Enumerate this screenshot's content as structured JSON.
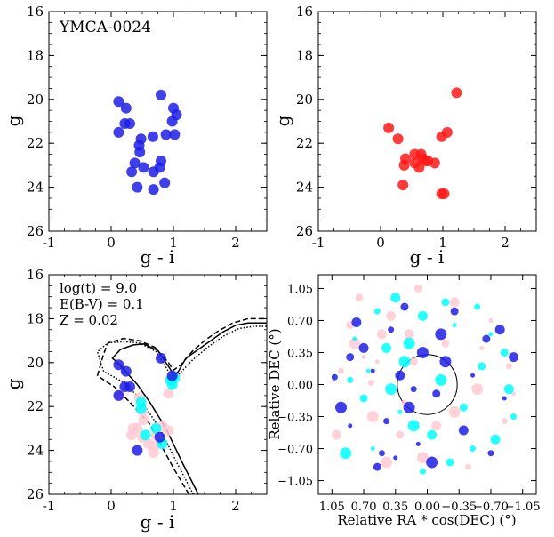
{
  "chart_data": [
    {
      "type": "scatter",
      "panel": "top-left",
      "title": "YMCA-0024",
      "xlabel": "g - i",
      "ylabel": "g",
      "xlim": [
        -1,
        2.5
      ],
      "ylim": [
        26,
        16
      ],
      "xticks": [
        "-1",
        "0",
        "1",
        "2"
      ],
      "yticks": [
        "16",
        "18",
        "20",
        "22",
        "24",
        "26"
      ],
      "series": [
        {
          "color": "#1f1fe6",
          "points": [
            [
              0.12,
              20.1
            ],
            [
              0.24,
              20.4
            ],
            [
              0.22,
              21.1
            ],
            [
              0.3,
              21.1
            ],
            [
              0.12,
              21.5
            ],
            [
              0.48,
              21.8
            ],
            [
              0.8,
              19.8
            ],
            [
              1.0,
              20.4
            ],
            [
              1.05,
              20.7
            ],
            [
              0.98,
              21.0
            ],
            [
              0.88,
              21.6
            ],
            [
              1.02,
              21.6
            ],
            [
              0.67,
              21.7
            ],
            [
              0.45,
              22.1
            ],
            [
              0.46,
              22.4
            ],
            [
              0.8,
              22.8
            ],
            [
              0.38,
              22.9
            ],
            [
              0.78,
              23.1
            ],
            [
              0.52,
              23.1
            ],
            [
              0.68,
              23.3
            ],
            [
              0.33,
              23.3
            ],
            [
              0.86,
              23.8
            ],
            [
              0.42,
              24.0
            ],
            [
              0.68,
              24.1
            ]
          ]
        }
      ]
    },
    {
      "type": "scatter",
      "panel": "top-right",
      "xlabel": "g - i",
      "ylabel": "g",
      "xlim": [
        -1,
        2.5
      ],
      "ylim": [
        26,
        16
      ],
      "xticks": [
        "-1",
        "0",
        "1",
        "2"
      ],
      "yticks": [
        "16",
        "18",
        "20",
        "22",
        "24",
        "26"
      ],
      "series": [
        {
          "color": "#ff1a1a",
          "points": [
            [
              1.22,
              19.7
            ],
            [
              0.13,
              21.3
            ],
            [
              0.28,
              21.8
            ],
            [
              1.07,
              21.5
            ],
            [
              0.98,
              21.7
            ],
            [
              0.55,
              22.5
            ],
            [
              0.65,
              22.5
            ],
            [
              0.4,
              22.7
            ],
            [
              0.68,
              22.7
            ],
            [
              0.72,
              22.8
            ],
            [
              0.76,
              22.8
            ],
            [
              0.87,
              22.9
            ],
            [
              0.55,
              22.9
            ],
            [
              0.38,
              23.0
            ],
            [
              0.62,
              23.1
            ],
            [
              0.36,
              23.9
            ],
            [
              0.98,
              24.3
            ],
            [
              1.02,
              24.3
            ]
          ]
        }
      ]
    },
    {
      "type": "scatter",
      "panel": "bottom-left",
      "annotations": [
        "log(t) = 9.0",
        "E(B-V) = 0.1",
        "Z = 0.02"
      ],
      "xlabel": "g - i",
      "ylabel": "g",
      "xlim": [
        -1,
        2.5
      ],
      "ylim": [
        26,
        16
      ],
      "xticks": [
        "-1",
        "0",
        "1",
        "2"
      ],
      "yticks": [
        "16",
        "18",
        "20",
        "22",
        "24",
        "26"
      ],
      "series": [
        {
          "color": "#ffcad4",
          "points": [
            [
              0.13,
              21.5
            ],
            [
              0.45,
              21.6
            ],
            [
              0.92,
              21.4
            ],
            [
              0.5,
              22.2
            ],
            [
              0.52,
              22.6
            ],
            [
              0.35,
              23.0
            ],
            [
              0.42,
              23.0
            ],
            [
              0.82,
              22.9
            ],
            [
              0.92,
              23.1
            ],
            [
              0.33,
              23.3
            ],
            [
              0.5,
              23.4
            ],
            [
              0.72,
              23.3
            ],
            [
              0.6,
              23.7
            ],
            [
              0.68,
              24.1
            ],
            [
              0.7,
              23.8
            ]
          ]
        },
        {
          "color": "#00ffff",
          "points": [
            [
              0.48,
              21.8
            ],
            [
              0.48,
              22.1
            ],
            [
              0.98,
              21.0
            ],
            [
              1.02,
              20.7
            ],
            [
              0.72,
              23.0
            ],
            [
              0.55,
              23.3
            ],
            [
              0.82,
              23.7
            ],
            [
              0.95,
              20.8
            ]
          ]
        },
        {
          "color": "#1f1fe6",
          "points": [
            [
              0.12,
              20.1
            ],
            [
              0.24,
              20.4
            ],
            [
              0.22,
              21.1
            ],
            [
              0.3,
              21.1
            ],
            [
              0.12,
              21.5
            ],
            [
              0.8,
              19.8
            ],
            [
              0.98,
              20.6
            ],
            [
              0.78,
              23.4
            ],
            [
              0.42,
              24.0
            ]
          ]
        }
      ],
      "isochrones": [
        {
          "style": "solid",
          "points": [
            [
              1.4,
              26.0
            ],
            [
              1.15,
              24.6
            ],
            [
              0.88,
              23.0
            ],
            [
              0.62,
              21.8
            ],
            [
              0.42,
              21.0
            ],
            [
              0.2,
              20.3
            ],
            [
              0.1,
              20.0
            ],
            [
              0.02,
              19.8
            ],
            [
              0.15,
              19.4
            ],
            [
              0.35,
              19.2
            ],
            [
              0.52,
              19.15
            ],
            [
              0.75,
              19.45
            ],
            [
              0.95,
              20.3
            ],
            [
              1.0,
              20.6
            ],
            [
              1.08,
              20.4
            ],
            [
              1.2,
              19.8
            ],
            [
              1.4,
              19.4
            ],
            [
              1.6,
              19.0
            ],
            [
              1.8,
              18.6
            ],
            [
              2.0,
              18.3
            ],
            [
              2.2,
              18.2
            ],
            [
              2.5,
              18.2
            ]
          ]
        },
        {
          "style": "dashed",
          "points": [
            [
              1.25,
              26.0
            ],
            [
              1.0,
              24.8
            ],
            [
              0.62,
              22.8
            ],
            [
              0.3,
              21.8
            ],
            [
              0.05,
              21.1
            ],
            [
              -0.22,
              20.6
            ],
            [
              -0.12,
              19.6
            ],
            [
              -0.05,
              19.1
            ],
            [
              0.2,
              18.9
            ],
            [
              0.45,
              19.0
            ],
            [
              0.7,
              19.3
            ],
            [
              0.92,
              20.0
            ],
            [
              1.0,
              20.35
            ],
            [
              1.12,
              20.1
            ],
            [
              1.3,
              19.5
            ],
            [
              1.5,
              19.0
            ],
            [
              1.7,
              18.6
            ],
            [
              1.95,
              18.2
            ],
            [
              2.2,
              18.0
            ],
            [
              2.5,
              18.0
            ]
          ]
        },
        {
          "style": "dotted",
          "points": [
            [
              1.32,
              26.0
            ],
            [
              1.08,
              24.7
            ],
            [
              0.78,
              23.0
            ],
            [
              0.45,
              21.6
            ],
            [
              0.2,
              20.9
            ],
            [
              -0.12,
              20.4
            ],
            [
              -0.22,
              19.5
            ],
            [
              -0.05,
              19.1
            ],
            [
              0.2,
              19.05
            ],
            [
              0.45,
              19.1
            ],
            [
              0.72,
              19.5
            ],
            [
              0.9,
              20.3
            ],
            [
              0.98,
              20.75
            ],
            [
              1.1,
              20.5
            ],
            [
              1.3,
              19.9
            ],
            [
              1.55,
              19.3
            ],
            [
              1.8,
              18.8
            ],
            [
              2.05,
              18.45
            ],
            [
              2.3,
              18.35
            ],
            [
              2.5,
              18.35
            ]
          ]
        }
      ]
    },
    {
      "type": "scatter",
      "panel": "bottom-right",
      "xlabel": "Relative RA * cos(DEC) (°)",
      "ylabel": "Relative DEC (°)",
      "xlim": [
        1.2,
        -1.2
      ],
      "ylim": [
        -1.2,
        1.2
      ],
      "xticks": [
        "1.05",
        "0.70",
        "0.35",
        "0.00",
        "−0.35",
        "−0.70",
        "−1.05"
      ],
      "yticks": [
        "1.05",
        "0.70",
        "0.35",
        "0.00",
        "−0.35",
        "−0.70",
        "−1.05"
      ],
      "circle_radius": 0.33,
      "series": [
        {
          "color": "#ffcad4",
          "points": [
            [
              0.55,
              0.25
            ],
            [
              0.1,
              1.05
            ],
            [
              0.8,
              0.45
            ],
            [
              0.62,
              0.02
            ],
            [
              -0.3,
              0.9
            ],
            [
              0.95,
              -0.25
            ],
            [
              0.3,
              -0.55
            ],
            [
              -0.55,
              -0.05
            ],
            [
              -0.9,
              0.2
            ],
            [
              0.2,
              0.55
            ],
            [
              -0.6,
              0.4
            ],
            [
              0.85,
              0.65
            ],
            [
              0.45,
              -0.85
            ],
            [
              -0.45,
              -0.9
            ],
            [
              1.0,
              -0.55
            ],
            [
              0.7,
              0.3
            ],
            [
              -0.2,
              0.45
            ],
            [
              0.05,
              -0.8
            ],
            [
              -0.85,
              -0.4
            ],
            [
              0.4,
              0.75
            ],
            [
              -0.7,
              0.7
            ],
            [
              0.15,
              0.25
            ],
            [
              0.6,
              -0.35
            ],
            [
              0.25,
              -0.2
            ],
            [
              -0.1,
              -0.45
            ],
            [
              -0.95,
              -0.1
            ],
            [
              0.75,
              0.95
            ],
            [
              -0.3,
              -0.3
            ],
            [
              0.95,
              0.15
            ],
            [
              0.5,
              0.55
            ]
          ]
        },
        {
          "color": "#00ffff",
          "points": [
            [
              0.35,
              0.95
            ],
            [
              -0.7,
              0.55
            ],
            [
              -0.2,
              0.9
            ],
            [
              0.2,
              0.45
            ],
            [
              0.85,
              0.05
            ],
            [
              -0.05,
              -0.55
            ],
            [
              0.6,
              -0.7
            ],
            [
              -0.85,
              0.35
            ],
            [
              0.9,
              -0.75
            ],
            [
              -0.5,
              -0.7
            ],
            [
              0.45,
              0.4
            ],
            [
              -0.3,
              0.65
            ],
            [
              0.7,
              -0.15
            ],
            [
              0.15,
              -0.45
            ],
            [
              -0.95,
              -0.35
            ],
            [
              0.05,
              0.75
            ],
            [
              0.3,
              -0.3
            ],
            [
              -0.6,
              0.2
            ],
            [
              -0.15,
              0.05
            ],
            [
              0.55,
              0.8
            ],
            [
              -0.75,
              -0.6
            ],
            [
              0.8,
              0.5
            ],
            [
              -0.4,
              -0.25
            ],
            [
              0.25,
              0.25
            ],
            [
              0.05,
              -0.95
            ],
            [
              -0.9,
              -0.05
            ],
            [
              0.65,
              0.15
            ],
            [
              -0.25,
              -0.85
            ],
            [
              0.4,
              -0.05
            ],
            [
              -0.55,
              0.85
            ]
          ]
        },
        {
          "color": "#1f1fe6",
          "points": [
            [
              1.02,
              0.08
            ],
            [
              0.78,
              0.68
            ],
            [
              0.85,
              -0.45
            ],
            [
              0.55,
              -0.9
            ],
            [
              -0.2,
              0.25
            ],
            [
              0.15,
              -0.05
            ],
            [
              0.3,
              0.1
            ],
            [
              -0.85,
              -0.15
            ],
            [
              -0.65,
              0.5
            ],
            [
              0.05,
              0.35
            ],
            [
              0.4,
              0.6
            ],
            [
              -0.4,
              -0.5
            ],
            [
              0.6,
              0.15
            ],
            [
              -0.1,
              -0.1
            ],
            [
              0.2,
              -0.25
            ],
            [
              0.45,
              -0.4
            ],
            [
              -0.95,
              0.3
            ],
            [
              0.1,
              -0.65
            ],
            [
              -0.3,
              0.8
            ],
            [
              0.95,
              -0.25
            ],
            [
              -0.7,
              -0.75
            ],
            [
              0.7,
              0.4
            ],
            [
              -0.5,
              0.1
            ],
            [
              0.25,
              0.85
            ],
            [
              -0.15,
              0.55
            ],
            [
              0.5,
              -0.75
            ],
            [
              -0.8,
              0.6
            ],
            [
              0.35,
              -0.8
            ],
            [
              0.85,
              0.3
            ],
            [
              -0.05,
              -0.85
            ]
          ]
        }
      ]
    }
  ]
}
